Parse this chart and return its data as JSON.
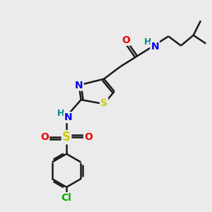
{
  "background_color": "#ebebeb",
  "atom_colors": {
    "C": "#1a1a1a",
    "N": "#0000ee",
    "O": "#ee0000",
    "S": "#cccc00",
    "Cl": "#00aa00",
    "H": "#008888"
  },
  "bond_color": "#1a1a1a",
  "bond_width": 1.8,
  "font_size": 10
}
